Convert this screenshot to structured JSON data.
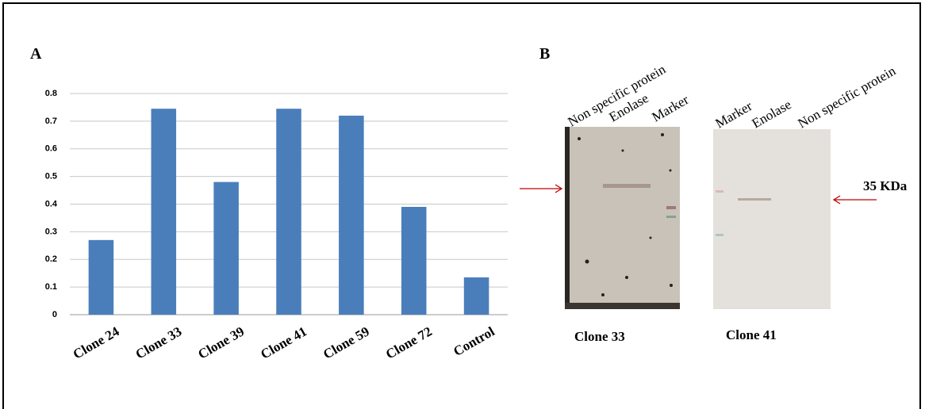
{
  "chart_data": {
    "type": "bar",
    "categories": [
      "Clone 24",
      "Clone 33",
      "Clone 39",
      "Clone 41",
      "Clone 59",
      "Clone 72",
      "Control"
    ],
    "values": [
      0.27,
      0.745,
      0.48,
      0.745,
      0.72,
      0.39,
      0.135
    ],
    "color": "#4a7ebb",
    "ylim": [
      0,
      0.8
    ],
    "yticks": [
      0,
      0.1,
      0.2,
      0.3,
      0.4,
      0.5,
      0.6,
      0.7,
      0.8
    ],
    "grid": true
  },
  "panel_a_label": "A",
  "panel_b": {
    "label": "B",
    "marker_label": "35 KDa",
    "blots": [
      {
        "lanes": [
          "Non specific protein",
          "Enolase",
          "Marker"
        ],
        "caption": "Clone 33"
      },
      {
        "lanes": [
          "Marker",
          "Enolase",
          "Non specific protein"
        ],
        "caption": "Clone 41"
      }
    ]
  }
}
